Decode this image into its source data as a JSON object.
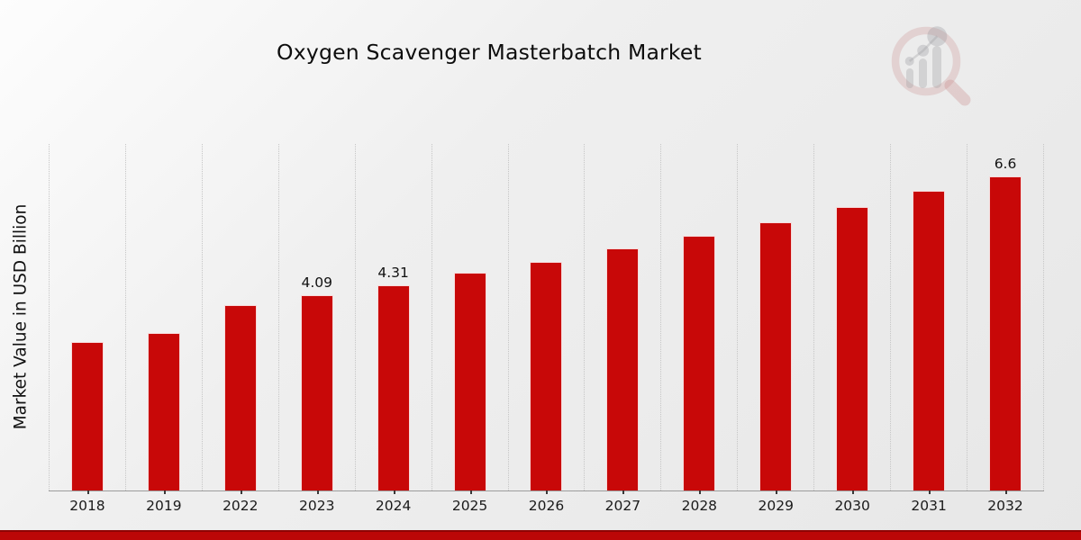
{
  "page": {
    "title": "Oxygen Scavenger Masterbatch Market"
  },
  "colors": {
    "bar": "#c80808",
    "footer_band": "#bb0707",
    "footer_band_edge": "#8e0404",
    "background_light": "#fdfdfd",
    "background_dark": "#e7e7e7",
    "axis_line": "#9c9c9c",
    "gridline": "#c6c6c6",
    "watermark_pink": "#c47e7e",
    "watermark_gray": "#9a9aa0"
  },
  "watermark": {
    "name": "magnifier-bar-chart-logo"
  },
  "chart_data": {
    "type": "bar",
    "title": "Oxygen Scavenger Masterbatch Market",
    "xlabel": "",
    "ylabel": "Market Value in USD Billion",
    "categories": [
      "2018",
      "2019",
      "2022",
      "2023",
      "2024",
      "2025",
      "2026",
      "2027",
      "2028",
      "2029",
      "2030",
      "2031",
      "2032"
    ],
    "values": [
      3.11,
      3.3,
      3.88,
      4.09,
      4.31,
      4.57,
      4.8,
      5.09,
      5.35,
      5.63,
      5.95,
      6.3,
      6.6
    ],
    "bar_labels": [
      "",
      "",
      "",
      "4.09",
      "4.31",
      "",
      "",
      "",
      "",
      "",
      "",
      "",
      "6.6"
    ],
    "ylim": [
      0,
      7.3
    ],
    "grid": "vertical-dotted",
    "legend": null,
    "bar_color": "#c80808"
  }
}
